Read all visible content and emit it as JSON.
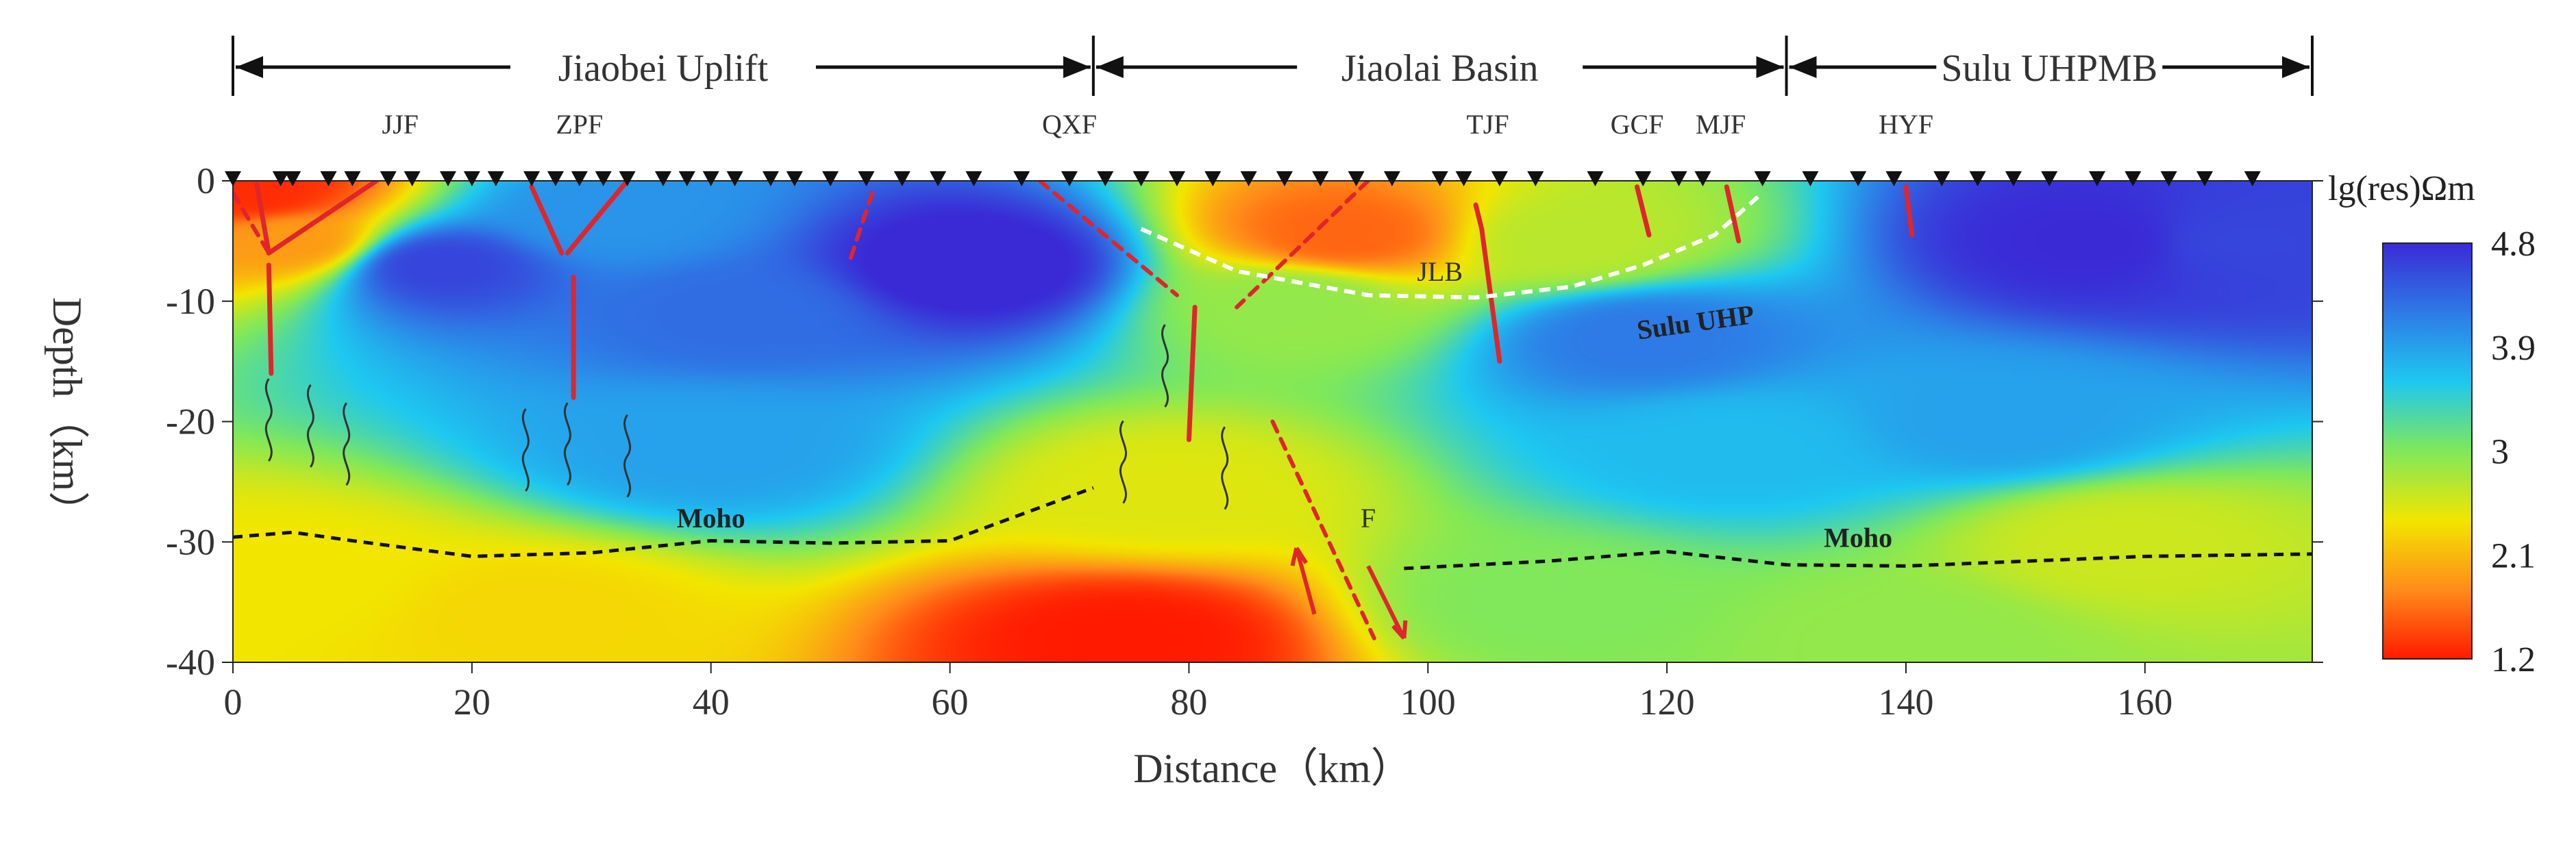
{
  "chart_data": {
    "type": "heatmap",
    "xlabel": "Distance（km）",
    "ylabel": "Depth（km）",
    "xlim": [
      0,
      174
    ],
    "ylim": [
      -40,
      0
    ],
    "x_ticks": [
      0,
      20,
      40,
      60,
      80,
      100,
      120,
      140,
      160
    ],
    "y_ticks": [
      0,
      -10,
      -20,
      -30,
      -40
    ],
    "colorbar": {
      "title": "lg(res)Ωm",
      "ticks": [
        4.8,
        3.9,
        3,
        2.1,
        1.2
      ],
      "range": [
        1.2,
        4.8
      ],
      "colors": [
        "#ff1a00",
        "#ff8c1a",
        "#f2e600",
        "#80e85a",
        "#1ec8f0",
        "#2e7ae6",
        "#3a2ad6"
      ]
    },
    "regions": [
      {
        "label": "Jiaobei Uplift",
        "x_start": 0,
        "x_end": 72
      },
      {
        "label": "Jiaolai Basin",
        "x_start": 72,
        "x_end": 130
      },
      {
        "label": "Sulu UHPMB",
        "x_start": 130,
        "x_end": 174
      }
    ],
    "faults": [
      {
        "label": "JJF",
        "x": 14
      },
      {
        "label": "ZPF",
        "x": 29
      },
      {
        "label": "QXF",
        "x": 70
      },
      {
        "label": "TJF",
        "x": 105
      },
      {
        "label": "GCF",
        "x": 117.5
      },
      {
        "label": "MJF",
        "x": 124.5
      },
      {
        "label": "HYF",
        "x": 140
      }
    ],
    "stations_x": [
      0,
      4,
      5,
      8,
      10,
      13,
      15,
      18,
      20,
      22,
      25,
      27,
      29,
      31,
      33,
      36,
      38,
      40,
      42,
      45,
      47,
      50,
      53,
      56,
      59,
      62,
      66,
      70,
      73,
      76,
      79,
      82,
      85,
      88,
      91,
      94,
      97,
      101,
      103,
      106,
      109,
      114,
      118,
      121,
      123,
      128,
      132,
      136,
      139,
      143,
      146,
      149,
      152,
      156,
      159,
      162,
      165,
      169
    ],
    "annotations": [
      {
        "text": "JLB",
        "x": 101,
        "y": -8.3
      },
      {
        "text": "Sulu UHP",
        "x": 122.5,
        "y": -12.5
      },
      {
        "text": "F",
        "x": 95,
        "y": -28.8
      },
      {
        "text": "Moho",
        "x": 40,
        "y": -28.8
      },
      {
        "text": "Moho",
        "x": 136,
        "y": -30.4
      }
    ],
    "moho_west": [
      [
        0,
        -29.6
      ],
      [
        5,
        -29.2
      ],
      [
        10,
        -29.9
      ],
      [
        20,
        -31.2
      ],
      [
        30,
        -30.9
      ],
      [
        40,
        -29.9
      ],
      [
        50,
        -30.1
      ],
      [
        60,
        -29.9
      ],
      [
        72,
        -25.5
      ]
    ],
    "moho_east": [
      [
        98,
        -32.2
      ],
      [
        110,
        -31.6
      ],
      [
        120,
        -30.8
      ],
      [
        130,
        -31.9
      ],
      [
        140,
        -32.0
      ],
      [
        160,
        -31.2
      ],
      [
        174,
        -31.0
      ]
    ],
    "basin_boundary": [
      [
        76,
        -4
      ],
      [
        84,
        -7.5
      ],
      [
        95,
        -9.5
      ],
      [
        104,
        -9.7
      ],
      [
        112,
        -8.8
      ],
      [
        118,
        -7
      ],
      [
        124,
        -4.5
      ],
      [
        128,
        -1
      ]
    ],
    "resistivity_anomalies": [
      {
        "x": 2,
        "y": -1,
        "value": 1.3
      },
      {
        "x": 5,
        "y": -5,
        "value": 1.9
      },
      {
        "x": 17,
        "y": -7,
        "value": 4.6
      },
      {
        "x": 42,
        "y": -11,
        "value": 4.3
      },
      {
        "x": 62,
        "y": -7,
        "value": 4.9
      },
      {
        "x": 31,
        "y": -3,
        "value": 4.0
      },
      {
        "x": 93,
        "y": -4.5,
        "value": 1.6
      },
      {
        "x": 89,
        "y": -10,
        "value": 2.9
      },
      {
        "x": 112,
        "y": -5,
        "value": 2.7
      },
      {
        "x": 118,
        "y": -13,
        "value": 4.2
      },
      {
        "x": 156,
        "y": -5,
        "value": 4.8
      },
      {
        "x": 168,
        "y": -5,
        "value": 4.6
      },
      {
        "x": 125,
        "y": -22,
        "value": 3.7
      },
      {
        "x": 40,
        "y": -22,
        "value": 3.9
      },
      {
        "x": 148,
        "y": -20,
        "value": 3.9
      },
      {
        "x": 78,
        "y": -26,
        "value": 2.5
      },
      {
        "x": 75,
        "y": -38,
        "value": 1.2
      },
      {
        "x": 25,
        "y": -36,
        "value": 2.3
      },
      {
        "x": 5,
        "y": -33,
        "value": 2.4
      },
      {
        "x": 110,
        "y": -35,
        "value": 3.0
      },
      {
        "x": 158,
        "y": -30,
        "value": 2.6
      },
      {
        "x": 140,
        "y": -38,
        "value": 2.9
      }
    ]
  }
}
